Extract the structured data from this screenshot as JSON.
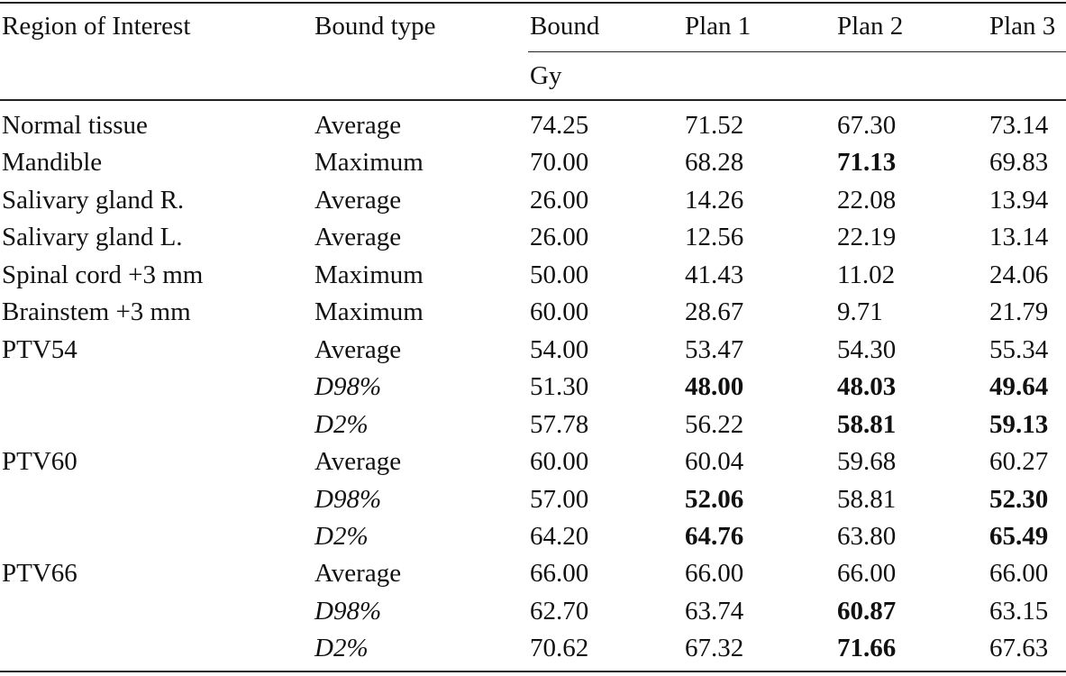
{
  "table": {
    "headers": {
      "roi": "Region of Interest",
      "bound_type": "Bound type",
      "bound": "Bound",
      "plan1": "Plan 1",
      "plan2": "Plan 2",
      "plan3": "Plan 3"
    },
    "unit": "Gy",
    "rows": [
      {
        "roi": "Normal tissue",
        "type": "Average",
        "type_italic": false,
        "bound": "74.25",
        "p1": "71.52",
        "p2": "67.30",
        "p3": "73.14",
        "bold": []
      },
      {
        "roi": "Mandible",
        "type": "Maximum",
        "type_italic": false,
        "bound": "70.00",
        "p1": "68.28",
        "p2": "71.13",
        "p3": "69.83",
        "bold": [
          "p2"
        ]
      },
      {
        "roi": "Salivary gland R.",
        "type": "Average",
        "type_italic": false,
        "bound": "26.00",
        "p1": "14.26",
        "p2": "22.08",
        "p3": "13.94",
        "bold": []
      },
      {
        "roi": "Salivary gland L.",
        "type": "Average",
        "type_italic": false,
        "bound": "26.00",
        "p1": "12.56",
        "p2": "22.19",
        "p3": "13.14",
        "bold": []
      },
      {
        "roi": "Spinal cord +3 mm",
        "type": "Maximum",
        "type_italic": false,
        "bound": "50.00",
        "p1": "41.43",
        "p2": "11.02",
        "p3": "24.06",
        "bold": []
      },
      {
        "roi": "Brainstem +3 mm",
        "type": "Maximum",
        "type_italic": false,
        "bound": "60.00",
        "p1": "28.67",
        "p2": "9.71",
        "p3": "21.79",
        "bold": []
      },
      {
        "roi": "PTV54",
        "type": "Average",
        "type_italic": false,
        "bound": "54.00",
        "p1": "53.47",
        "p2": "54.30",
        "p3": "55.34",
        "bold": []
      },
      {
        "roi": "",
        "type": "D98%",
        "type_italic": true,
        "bound": "51.30",
        "p1": "48.00",
        "p2": "48.03",
        "p3": "49.64",
        "bold": [
          "p1",
          "p2",
          "p3"
        ]
      },
      {
        "roi": "",
        "type": "D2%",
        "type_italic": true,
        "bound": "57.78",
        "p1": "56.22",
        "p2": "58.81",
        "p3": "59.13",
        "bold": [
          "p2",
          "p3"
        ]
      },
      {
        "roi": "PTV60",
        "type": "Average",
        "type_italic": false,
        "bound": "60.00",
        "p1": "60.04",
        "p2": "59.68",
        "p3": "60.27",
        "bold": []
      },
      {
        "roi": "",
        "type": "D98%",
        "type_italic": true,
        "bound": "57.00",
        "p1": "52.06",
        "p2": "58.81",
        "p3": "52.30",
        "bold": [
          "p1",
          "p3"
        ]
      },
      {
        "roi": "",
        "type": "D2%",
        "type_italic": true,
        "bound": "64.20",
        "p1": "64.76",
        "p2": "63.80",
        "p3": "65.49",
        "bold": [
          "p1",
          "p3"
        ]
      },
      {
        "roi": "PTV66",
        "type": "Average",
        "type_italic": false,
        "bound": "66.00",
        "p1": "66.00",
        "p2": "66.00",
        "p3": "66.00",
        "bold": []
      },
      {
        "roi": "",
        "type": "D98%",
        "type_italic": true,
        "bound": "62.70",
        "p1": "63.74",
        "p2": "60.87",
        "p3": "63.15",
        "bold": [
          "p2"
        ]
      },
      {
        "roi": "",
        "type": "D2%",
        "type_italic": true,
        "bound": "70.62",
        "p1": "67.32",
        "p2": "71.66",
        "p3": "67.63",
        "bold": [
          "p2"
        ]
      }
    ]
  }
}
